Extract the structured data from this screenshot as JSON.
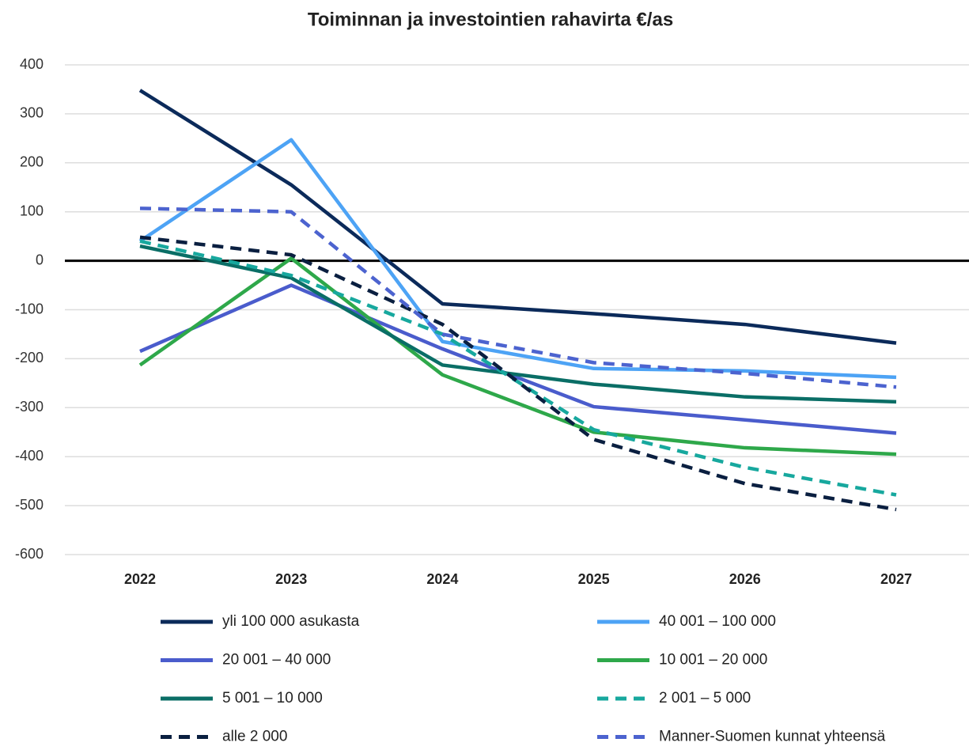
{
  "chart_data": {
    "type": "line",
    "title": "Toiminnan ja investointien rahavirta €/as",
    "x": [
      "2022",
      "2023",
      "2024",
      "2025",
      "2026",
      "2027"
    ],
    "ylim": [
      -600,
      400
    ],
    "yticks": [
      -600,
      -500,
      -400,
      -300,
      -200,
      -100,
      0,
      100,
      200,
      300,
      400
    ],
    "grid": true,
    "series": [
      {
        "name": "yli 100 000 asukasta",
        "color": "#0b2a5a",
        "dashed": false,
        "values": [
          348,
          155,
          -88,
          -108,
          -130,
          -168
        ]
      },
      {
        "name": "40 001 – 100 000",
        "color": "#4da3f5",
        "dashed": false,
        "values": [
          40,
          247,
          -165,
          -220,
          -225,
          -238
        ]
      },
      {
        "name": "20 001 – 40 000",
        "color": "#4a5ccc",
        "dashed": false,
        "values": [
          -185,
          -50,
          -180,
          -298,
          -325,
          -352
        ]
      },
      {
        "name": "10 001 – 20 000",
        "color": "#2ea84a",
        "dashed": false,
        "values": [
          -213,
          5,
          -233,
          -350,
          -382,
          -395
        ]
      },
      {
        "name": "5 001 – 10 000",
        "color": "#0a6e66",
        "dashed": false,
        "values": [
          30,
          -35,
          -213,
          -252,
          -278,
          -288
        ]
      },
      {
        "name": "2 001 – 5 000",
        "color": "#17a89e",
        "dashed": true,
        "values": [
          40,
          -30,
          -150,
          -345,
          -422,
          -478
        ]
      },
      {
        "name": "alle 2 000",
        "color": "#0a1f40",
        "dashed": true,
        "values": [
          48,
          12,
          -130,
          -365,
          -455,
          -508
        ]
      },
      {
        "name": "Manner-Suomen kunnat yhteensä",
        "color": "#4c63cf",
        "dashed": true,
        "values": [
          107,
          100,
          -150,
          -208,
          -230,
          -258
        ]
      }
    ]
  }
}
